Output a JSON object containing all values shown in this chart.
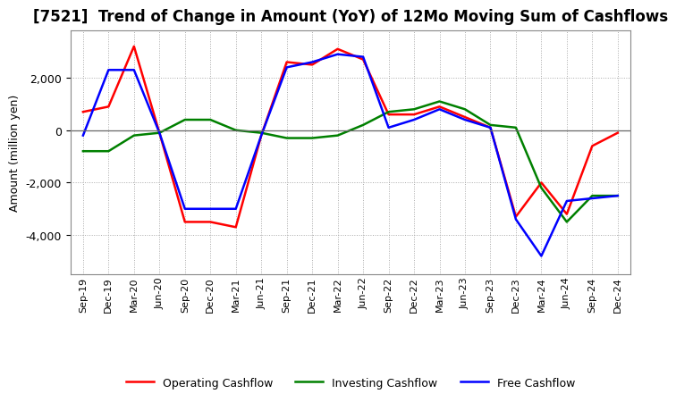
{
  "title": "[7521]  Trend of Change in Amount (YoY) of 12Mo Moving Sum of Cashflows",
  "ylabel": "Amount (million yen)",
  "x_labels": [
    "Sep-19",
    "Dec-19",
    "Mar-20",
    "Jun-20",
    "Sep-20",
    "Dec-20",
    "Mar-21",
    "Jun-21",
    "Sep-21",
    "Dec-21",
    "Mar-22",
    "Jun-22",
    "Sep-22",
    "Dec-22",
    "Mar-23",
    "Jun-23",
    "Sep-23",
    "Dec-23",
    "Mar-24",
    "Jun-24",
    "Sep-24",
    "Dec-24"
  ],
  "operating_cashflow": [
    700,
    900,
    3200,
    -100,
    -3500,
    -3500,
    -3700,
    -200,
    2600,
    2500,
    3100,
    2700,
    600,
    600,
    900,
    500,
    100,
    -3300,
    -2000,
    -3200,
    -600,
    -100
  ],
  "investing_cashflow": [
    -800,
    -800,
    -200,
    -100,
    400,
    400,
    0,
    -100,
    -300,
    -300,
    -200,
    200,
    700,
    800,
    1100,
    800,
    200,
    100,
    -2200,
    -3500,
    -2500,
    -2500
  ],
  "free_cashflow": [
    -200,
    2300,
    2300,
    -100,
    -3000,
    -3000,
    -3000,
    -200,
    2400,
    2600,
    2900,
    2800,
    100,
    400,
    800,
    400,
    100,
    -3400,
    -4800,
    -2700,
    -2600,
    -2500
  ],
  "ylim": [
    -5500,
    3800
  ],
  "yticks": [
    -4000,
    -2000,
    0,
    2000
  ],
  "line_colors": {
    "operating": "#ff0000",
    "investing": "#008000",
    "free": "#0000ff"
  },
  "line_width": 1.8,
  "legend_labels": [
    "Operating Cashflow",
    "Investing Cashflow",
    "Free Cashflow"
  ],
  "background_color": "#ffffff",
  "grid_color": "#aaaaaa",
  "title_fontsize": 12,
  "axis_fontsize": 9,
  "tick_fontsize": 8
}
